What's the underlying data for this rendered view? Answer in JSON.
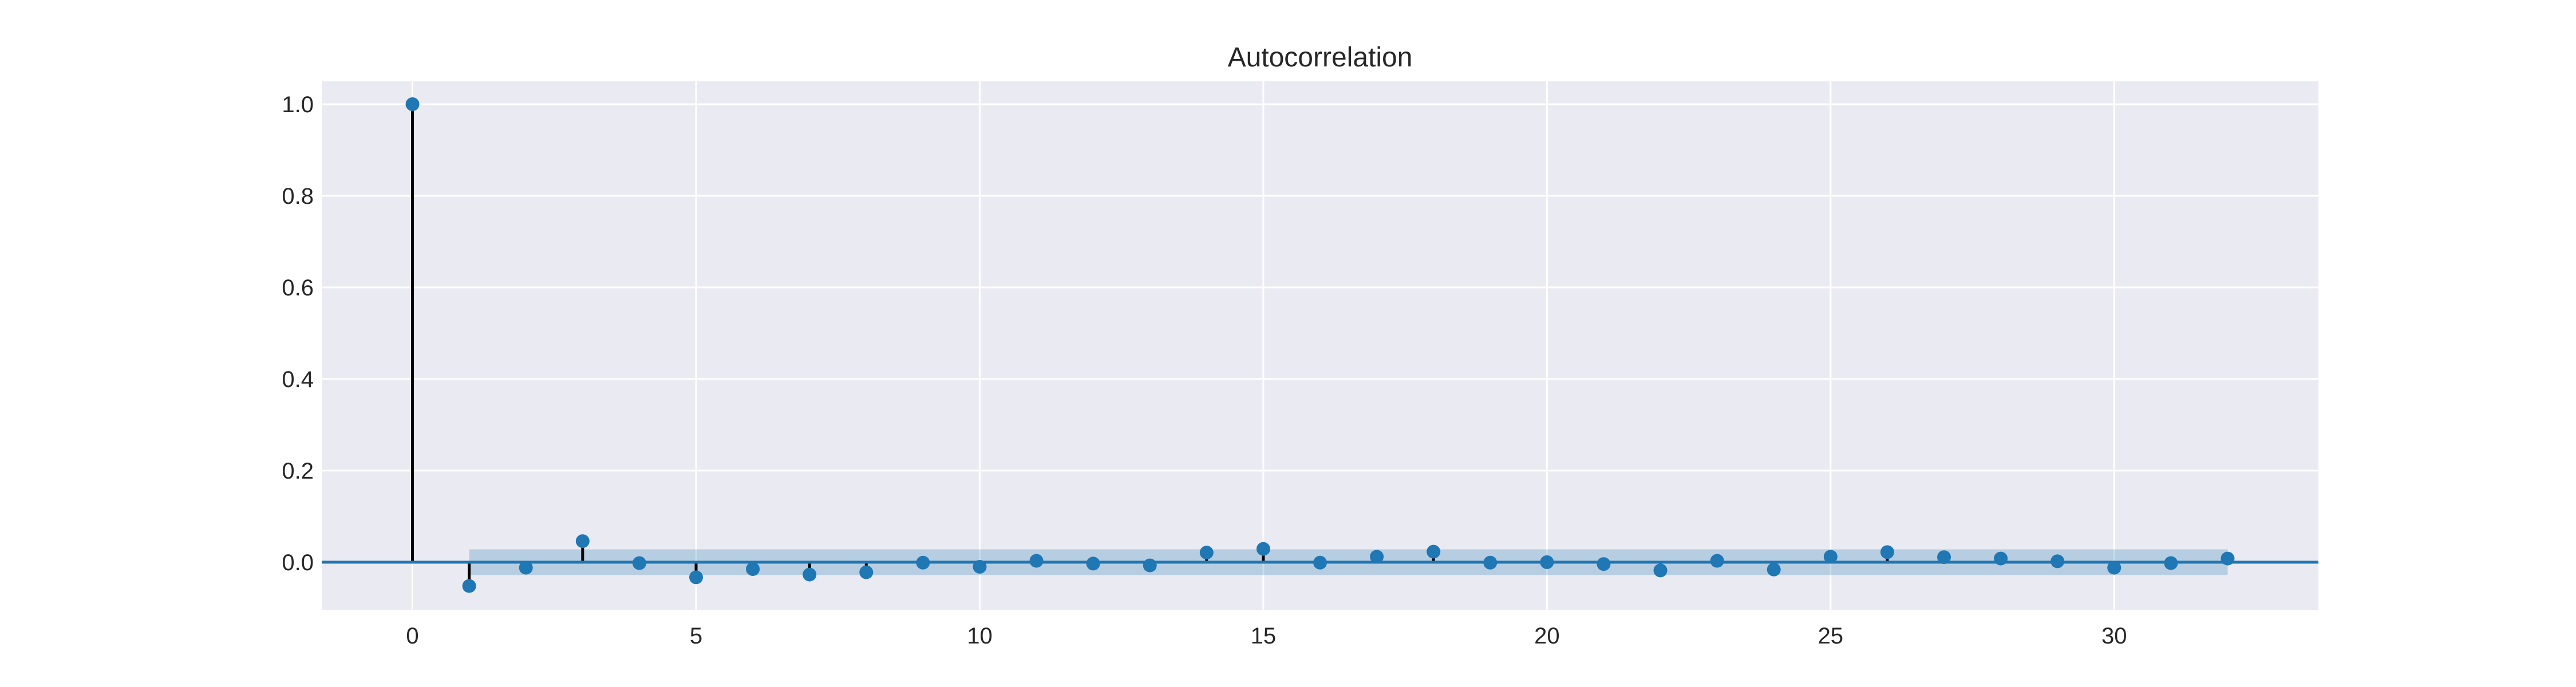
{
  "chart_data": {
    "type": "stem",
    "title": "Autocorrelation",
    "xlabel": "",
    "ylabel": "",
    "xlim": [
      -1.6,
      33.6
    ],
    "ylim": [
      -0.105,
      1.05
    ],
    "x_ticks": [
      0,
      5,
      10,
      15,
      20,
      25,
      30
    ],
    "y_ticks": [
      0.0,
      0.2,
      0.4,
      0.6,
      0.8,
      1.0
    ],
    "x_tick_labels": [
      "0",
      "5",
      "10",
      "15",
      "20",
      "25",
      "30"
    ],
    "y_tick_labels": [
      "0.0",
      "0.2",
      "0.4",
      "0.6",
      "0.8",
      "1.0"
    ],
    "grid": true,
    "series": [
      {
        "lags": [
          0,
          1,
          2,
          3,
          4,
          5,
          6,
          7,
          8,
          9,
          10,
          11,
          12,
          13,
          14,
          15,
          16,
          17,
          18,
          19,
          20,
          21,
          22,
          23,
          24,
          25,
          26,
          27,
          28,
          29,
          30,
          31,
          32
        ],
        "values": [
          1.0,
          -0.052,
          -0.012,
          0.046,
          -0.002,
          -0.033,
          -0.015,
          -0.027,
          -0.022,
          -0.001,
          -0.01,
          0.003,
          -0.003,
          -0.007,
          0.021,
          0.029,
          -0.001,
          0.012,
          0.023,
          -0.001,
          0.0,
          -0.004,
          -0.018,
          0.003,
          -0.016,
          0.012,
          0.022,
          0.011,
          0.008,
          0.002,
          -0.012,
          -0.002,
          0.008
        ]
      }
    ],
    "confidence_band": {
      "x_range": [
        1,
        32
      ],
      "upper": 0.028,
      "lower": -0.028
    },
    "colors": {
      "background": "#eaeaf2",
      "grid": "#ffffff",
      "marker": "#1f77b4",
      "stem": "#000000",
      "baseline": "#1f77b4",
      "band": "#1f77b4",
      "text": "#262626"
    }
  }
}
